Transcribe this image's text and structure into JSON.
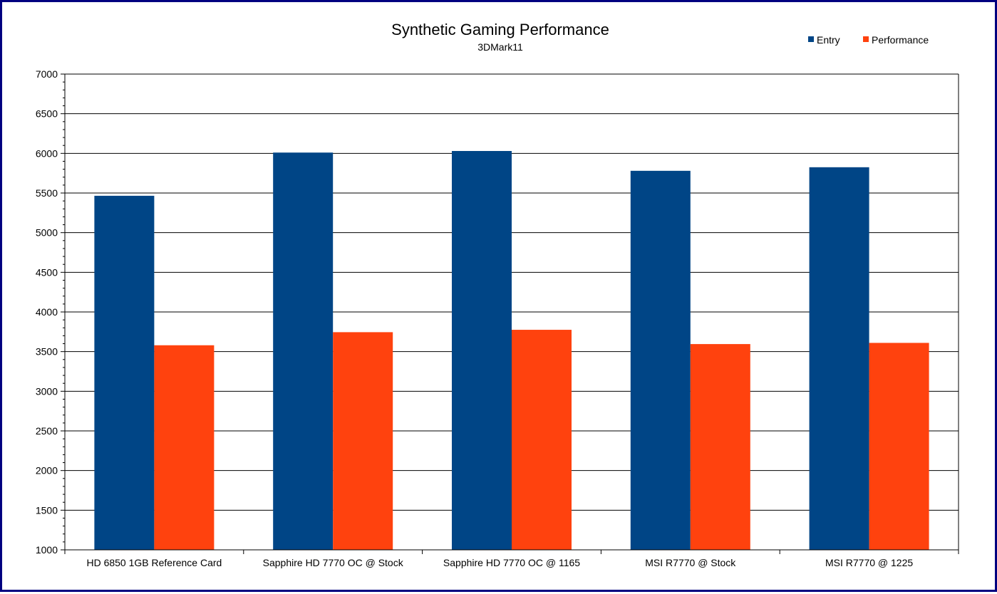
{
  "chart_data": {
    "type": "bar",
    "title": "Synthetic Gaming Performance",
    "subtitle": "3DMark11",
    "categories": [
      "HD 6850 1GB Reference Card",
      "Sapphire HD 7770 OC @ Stock",
      "Sapphire HD 7770 OC @ 1165",
      "MSI R7770 @ Stock",
      "MSI R7770 @ 1225"
    ],
    "series": [
      {
        "name": "Entry",
        "color": "#004586",
        "values": [
          5465,
          6010,
          6030,
          5780,
          5825
        ]
      },
      {
        "name": "Performance",
        "color": "#ff420e",
        "values": [
          3580,
          3745,
          3775,
          3595,
          3610
        ]
      }
    ],
    "ylim": [
      1000,
      7000
    ],
    "yticks": [
      "1000",
      "1500",
      "2000",
      "2500",
      "3000",
      "3500",
      "4000",
      "4500",
      "5000",
      "5500",
      "6000",
      "6500",
      "7000"
    ],
    "grid": true,
    "legend_position": "top-right"
  }
}
